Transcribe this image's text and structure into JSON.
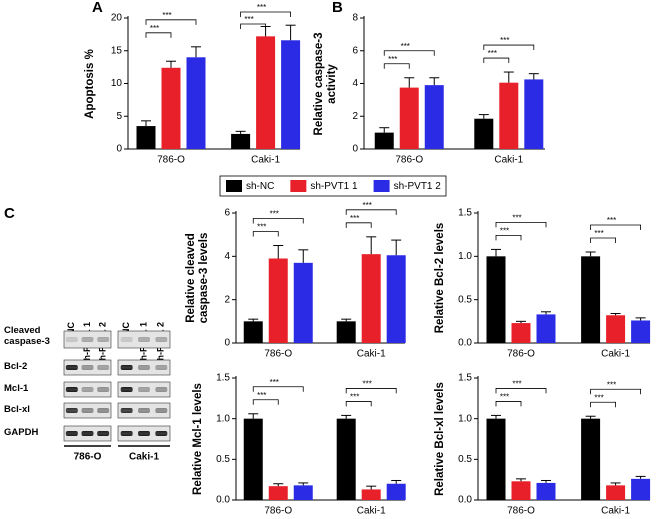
{
  "legend": [
    {
      "name": "sh-NC",
      "color": "#000000"
    },
    {
      "name": "sh-PVT1 1",
      "color": "#e8202a"
    },
    {
      "name": "sh-PVT1 2",
      "color": "#2b2be6"
    }
  ],
  "chart_data": [
    {
      "type": "bar",
      "panel": "A",
      "ylabel": "Apoptosis %",
      "categories": [
        "786-O",
        "Caki-1"
      ],
      "series": [
        {
          "values": [
            3.5,
            2.3
          ],
          "errors": [
            0.8,
            0.4
          ]
        },
        {
          "values": [
            12.4,
            17.2
          ],
          "errors": [
            1.0,
            1.5
          ]
        },
        {
          "values": [
            14.0,
            16.6
          ],
          "errors": [
            1.6,
            2.3
          ]
        }
      ],
      "ylim": [
        0,
        20
      ],
      "yticks": [
        0,
        5,
        10,
        15,
        20
      ],
      "annotations": [
        "***",
        "***",
        "***",
        "***"
      ]
    },
    {
      "type": "bar",
      "panel": "B",
      "ylabel": "Relative caspase-3 activity",
      "categories": [
        "786-O",
        "Caki-1"
      ],
      "series": [
        {
          "values": [
            1.0,
            1.85
          ],
          "errors": [
            0.3,
            0.25
          ]
        },
        {
          "values": [
            3.75,
            4.05
          ],
          "errors": [
            0.6,
            0.65
          ]
        },
        {
          "values": [
            3.9,
            4.25
          ],
          "errors": [
            0.45,
            0.35
          ]
        }
      ],
      "ylim": [
        0,
        8
      ],
      "yticks": [
        0,
        2,
        4,
        6,
        8
      ],
      "annotations": [
        "***",
        "***",
        "***",
        "***"
      ]
    },
    {
      "type": "bar",
      "ylabel": "Relative cleaved caspase-3 levels",
      "categories": [
        "786-O",
        "Caki-1"
      ],
      "series": [
        {
          "values": [
            1.0,
            1.0
          ],
          "errors": [
            0.1,
            0.1
          ]
        },
        {
          "values": [
            3.9,
            4.1
          ],
          "errors": [
            0.6,
            0.8
          ]
        },
        {
          "values": [
            3.7,
            4.05
          ],
          "errors": [
            0.6,
            0.7
          ]
        }
      ],
      "ylim": [
        0,
        6
      ],
      "yticks": [
        0,
        2,
        4,
        6
      ],
      "annotations": [
        "***",
        "***",
        "***",
        "***"
      ]
    },
    {
      "type": "bar",
      "ylabel": "Relative Bcl-2 levels",
      "categories": [
        "786-O",
        "Caki-1"
      ],
      "series": [
        {
          "values": [
            1.0,
            1.0
          ],
          "errors": [
            0.08,
            0.05
          ]
        },
        {
          "values": [
            0.23,
            0.32
          ],
          "errors": [
            0.02,
            0.02
          ]
        },
        {
          "values": [
            0.33,
            0.26
          ],
          "errors": [
            0.03,
            0.03
          ]
        }
      ],
      "ylim": [
        0,
        1.5
      ],
      "yticks": [
        {
          "value": 0,
          "label": "0.0"
        },
        0.5,
        {
          "value": 1,
          "label": "1.0"
        },
        1.5
      ],
      "annotations": [
        "***",
        "***",
        "***",
        "***"
      ]
    },
    {
      "type": "bar",
      "ylabel": "Relative Mcl-1 levels",
      "categories": [
        "786-O",
        "Caki-1"
      ],
      "series": [
        {
          "values": [
            1.0,
            1.0
          ],
          "errors": [
            0.06,
            0.04
          ]
        },
        {
          "values": [
            0.17,
            0.13
          ],
          "errors": [
            0.03,
            0.04
          ]
        },
        {
          "values": [
            0.18,
            0.2
          ],
          "errors": [
            0.03,
            0.04
          ]
        }
      ],
      "ylim": [
        0,
        1.5
      ],
      "yticks": [
        {
          "value": 0,
          "label": "0.0"
        },
        0.5,
        {
          "value": 1,
          "label": "1.0"
        },
        1.5
      ],
      "annotations": [
        "***",
        "***",
        "***",
        "***"
      ]
    },
    {
      "type": "bar",
      "ylabel": "Relative Bcl-xl levels",
      "categories": [
        "786-O",
        "Caki-1"
      ],
      "series": [
        {
          "values": [
            1.0,
            1.0
          ],
          "errors": [
            0.04,
            0.03
          ]
        },
        {
          "values": [
            0.23,
            0.18
          ],
          "errors": [
            0.03,
            0.03
          ]
        },
        {
          "values": [
            0.21,
            0.26
          ],
          "errors": [
            0.03,
            0.03
          ]
        }
      ],
      "ylim": [
        0,
        1.5
      ],
      "yticks": [
        {
          "value": 0,
          "label": "0.0"
        },
        0.5,
        {
          "value": 1,
          "label": "1.0"
        },
        1.5
      ],
      "annotations": [
        "***",
        "***",
        "***",
        "***"
      ]
    }
  ],
  "blot": {
    "panel": "C",
    "lanes": [
      "sh-NC",
      "sh-PVT1 1",
      "sh-PVT1 2"
    ],
    "rows": [
      "Cleaved caspase-3",
      "Bcl-2",
      "Mcl-1",
      "Bcl-xl",
      "GAPDH"
    ],
    "groups": [
      "786-O",
      "Caki-1"
    ]
  }
}
